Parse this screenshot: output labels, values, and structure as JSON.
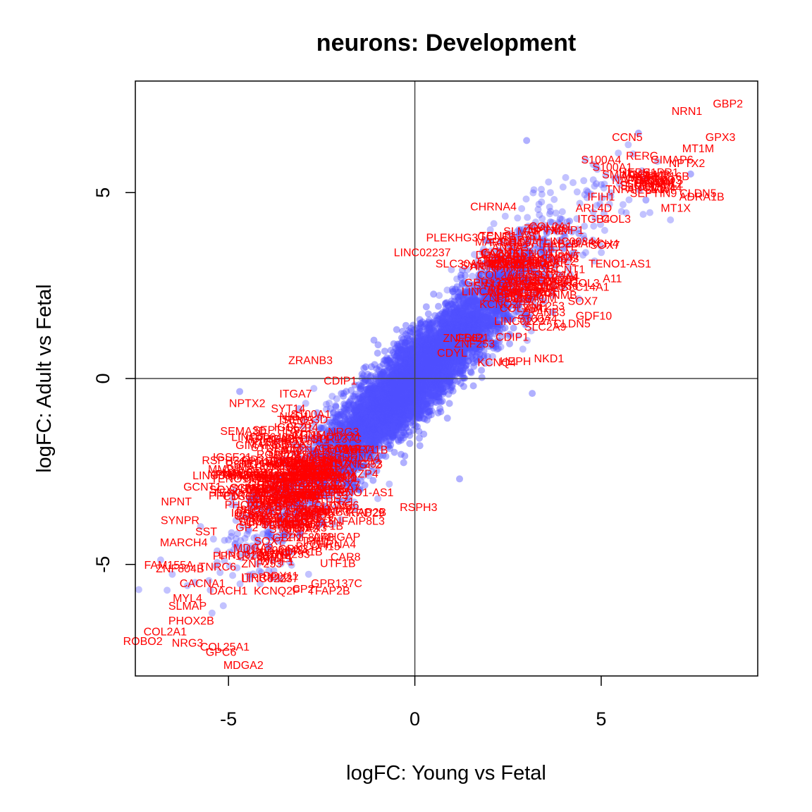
{
  "chart_data": {
    "type": "scatter",
    "title": "neurons: Development",
    "xlabel": "logFC: Young vs Fetal",
    "ylabel": "logFC: Adult vs Fetal",
    "xlim": [
      -7.5,
      9.2
    ],
    "ylim": [
      -8.0,
      8.0
    ],
    "xticks": [
      -5,
      0,
      5
    ],
    "yticks": [
      -5,
      0,
      5
    ],
    "reference_lines": {
      "x": 0,
      "y": 0
    },
    "point_color": "#5050ff",
    "label_color": "#ff0000",
    "background_points_description_cloud": {
      "slope": 1.0,
      "note_points": [
        {
          "x": 3.0,
          "y": 6.4
        },
        {
          "x": -4.7,
          "y": -0.35
        },
        {
          "x": 6.0,
          "y": 6.6
        },
        {
          "x": 1.2,
          "y": -2.7
        },
        {
          "x": 3.15,
          "y": -0.4
        },
        {
          "x": 3.9,
          "y": 4.3
        },
        {
          "x": 4.4,
          "y": 3.9
        },
        {
          "x": 6.2,
          "y": 4.8
        },
        {
          "x": 7.4,
          "y": 5.5
        }
      ]
    },
    "labeled_genes": [
      {
        "name": "NRN1",
        "x": 7.3,
        "y": 7.2
      },
      {
        "name": "GBP2",
        "x": 8.4,
        "y": 7.4
      },
      {
        "name": "CCN5",
        "x": 5.7,
        "y": 6.5
      },
      {
        "name": "GPX3",
        "x": 8.2,
        "y": 6.5
      },
      {
        "name": "MT1M",
        "x": 7.6,
        "y": 6.2
      },
      {
        "name": "RERG",
        "x": 6.1,
        "y": 6.0
      },
      {
        "name": "S100A4",
        "x": 5.0,
        "y": 5.9
      },
      {
        "name": "GIMAP6",
        "x": 6.9,
        "y": 5.9
      },
      {
        "name": "NPTX2",
        "x": 7.3,
        "y": 5.8
      },
      {
        "name": "S100A1",
        "x": 5.3,
        "y": 5.7
      },
      {
        "name": "SMIM3",
        "x": 5.5,
        "y": 5.5
      },
      {
        "name": "HEPH",
        "x": 5.9,
        "y": 5.55
      },
      {
        "name": "WIPF1",
        "x": 6.1,
        "y": 5.4
      },
      {
        "name": "GPNMB",
        "x": 6.3,
        "y": 5.5
      },
      {
        "name": "NAPSA",
        "x": 5.8,
        "y": 5.35
      },
      {
        "name": "SHISA2",
        "x": 6.2,
        "y": 5.25
      },
      {
        "name": "TSC22D3",
        "x": 6.5,
        "y": 5.35
      },
      {
        "name": "LINC00844",
        "x": 6.4,
        "y": 5.15
      },
      {
        "name": "VWF",
        "x": 6.7,
        "y": 5.1
      },
      {
        "name": "PPP1R16B",
        "x": 6.6,
        "y": 5.45
      },
      {
        "name": "ITPRIPL2",
        "x": 6.55,
        "y": 5.25
      },
      {
        "name": "SEPTIN9",
        "x": 6.4,
        "y": 5.0
      },
      {
        "name": "STOM",
        "x": 6.5,
        "y": 5.3
      },
      {
        "name": "VIM",
        "x": 6.7,
        "y": 5.3
      },
      {
        "name": "SLC14A1",
        "x": 6.15,
        "y": 5.2
      },
      {
        "name": "SRPX",
        "x": 6.35,
        "y": 5.35
      },
      {
        "name": "S1PR1",
        "x": 6.6,
        "y": 5.55
      },
      {
        "name": "ANXA3",
        "x": 6.0,
        "y": 5.45
      },
      {
        "name": "TNFAIP8L3",
        "x": 5.9,
        "y": 5.1
      },
      {
        "name": "MT1X",
        "x": 7.0,
        "y": 4.6
      },
      {
        "name": "CLDN5",
        "x": 7.6,
        "y": 5.0
      },
      {
        "name": "ADRA1B",
        "x": 7.7,
        "y": 4.9
      },
      {
        "name": "IFIH1",
        "x": 5.0,
        "y": 4.9
      },
      {
        "name": "ARL4D",
        "x": 4.8,
        "y": 4.6
      },
      {
        "name": "COL3",
        "x": 5.4,
        "y": 4.3
      },
      {
        "name": "ITGB4",
        "x": 4.8,
        "y": 4.3
      },
      {
        "name": "PLEKHG3",
        "x": 1.0,
        "y": 3.8
      },
      {
        "name": "LINC02237",
        "x": 0.2,
        "y": 3.4
      },
      {
        "name": "SLC30A1",
        "x": 1.2,
        "y": 3.1
      },
      {
        "name": "CAR8",
        "x": 2.6,
        "y": 3.3
      },
      {
        "name": "SOX7",
        "x": 5.1,
        "y": 3.6
      },
      {
        "name": "MMP1",
        "x": 4.1,
        "y": 4.0
      },
      {
        "name": "TENO1-AS1",
        "x": 5.5,
        "y": 3.1
      },
      {
        "name": "A11",
        "x": 5.3,
        "y": 2.7
      },
      {
        "name": "CD36",
        "x": 4.0,
        "y": 2.5
      },
      {
        "name": "GDF10",
        "x": 4.8,
        "y": 1.7
      },
      {
        "name": "SLC2A9",
        "x": 3.5,
        "y": 1.4
      },
      {
        "name": "ZNF562",
        "x": 1.3,
        "y": 1.1
      },
      {
        "name": "ZNF253",
        "x": 1.6,
        "y": 0.95
      },
      {
        "name": "CDYL",
        "x": 1.0,
        "y": 0.7
      },
      {
        "name": "KCNQ4",
        "x": 2.2,
        "y": 0.45
      },
      {
        "name": "NKD1",
        "x": 3.6,
        "y": 0.55
      },
      {
        "name": "ZRANB3",
        "x": -2.8,
        "y": 0.5
      },
      {
        "name": "CDIP1",
        "x": -2.0,
        "y": -0.05
      },
      {
        "name": "ITGA7",
        "x": -3.2,
        "y": -0.4
      },
      {
        "name": "SYT14",
        "x": -3.4,
        "y": -0.8
      },
      {
        "name": "TRPC3",
        "x": -3.2,
        "y": -1.1
      },
      {
        "name": "SCLT1",
        "x": -1.5,
        "y": -1.9
      },
      {
        "name": "LINC00643",
        "x": -5.2,
        "y": -2.6
      },
      {
        "name": "RSPH3",
        "x": 0.1,
        "y": -3.45
      },
      {
        "name": "NRN1",
        "x": -3.2,
        "y": -4.0
      },
      {
        "name": "MARCH4",
        "x": -6.2,
        "y": -4.4
      },
      {
        "name": "FAM155A",
        "x": -6.6,
        "y": -5.0
      },
      {
        "name": "ZNF804B",
        "x": -6.3,
        "y": -5.1
      },
      {
        "name": "CACNA1",
        "x": -5.7,
        "y": -5.5
      },
      {
        "name": "MYL4",
        "x": -6.1,
        "y": -5.9
      },
      {
        "name": "SLMAP",
        "x": -6.1,
        "y": -6.1
      },
      {
        "name": "PHOX2B",
        "x": -6.0,
        "y": -6.5
      },
      {
        "name": "COL2A1",
        "x": -6.7,
        "y": -6.8
      },
      {
        "name": "ROBO2",
        "x": -7.3,
        "y": -7.05
      },
      {
        "name": "NRG3",
        "x": -6.1,
        "y": -7.1
      },
      {
        "name": "COL25A1",
        "x": -5.1,
        "y": -7.2
      },
      {
        "name": "GPC6",
        "x": -5.2,
        "y": -7.35
      },
      {
        "name": "MDGA2",
        "x": -4.6,
        "y": -7.7
      },
      {
        "name": "GPR137C",
        "x": -2.1,
        "y": -5.5
      },
      {
        "name": "TFAP2B",
        "x": -2.3,
        "y": -5.7
      },
      {
        "name": "DACH1",
        "x": -5.0,
        "y": -5.7
      },
      {
        "name": "KCNQ2P",
        "x": -3.7,
        "y": -5.7
      },
      {
        "name": "CP2",
        "x": -3.0,
        "y": -5.65
      },
      {
        "name": "PCDH15",
        "x": -2.6,
        "y": -4.5
      },
      {
        "name": "CHRNA4",
        "x": -2.2,
        "y": -4.45
      },
      {
        "name": "DDX11",
        "x": -3.6,
        "y": -5.3
      },
      {
        "name": "TNRC6",
        "x": -5.3,
        "y": -5.05
      },
      {
        "name": "ARHGAP",
        "x": -2.1,
        "y": -4.25
      },
      {
        "name": "KRD29",
        "x": -1.3,
        "y": -3.6
      },
      {
        "name": "UTF1B",
        "x": -2.4,
        "y": -3.95
      },
      {
        "name": "PTPRZ1",
        "x": -2.2,
        "y": -3.3
      },
      {
        "name": "GP2",
        "x": -1.2,
        "y": -2.3
      },
      {
        "name": "IXZP4",
        "x": -1.4,
        "y": -2.55
      },
      {
        "name": "SEMA3D",
        "x": -4.6,
        "y": -1.4
      },
      {
        "name": "IGSF21",
        "x": -4.9,
        "y": -2.1
      },
      {
        "name": "NPNT",
        "x": -6.4,
        "y": -3.3
      },
      {
        "name": "SYNPR",
        "x": -6.3,
        "y": -3.8
      },
      {
        "name": "GCNT1",
        "x": -5.7,
        "y": -2.9
      },
      {
        "name": "SST",
        "x": -5.6,
        "y": -4.1
      }
    ]
  }
}
